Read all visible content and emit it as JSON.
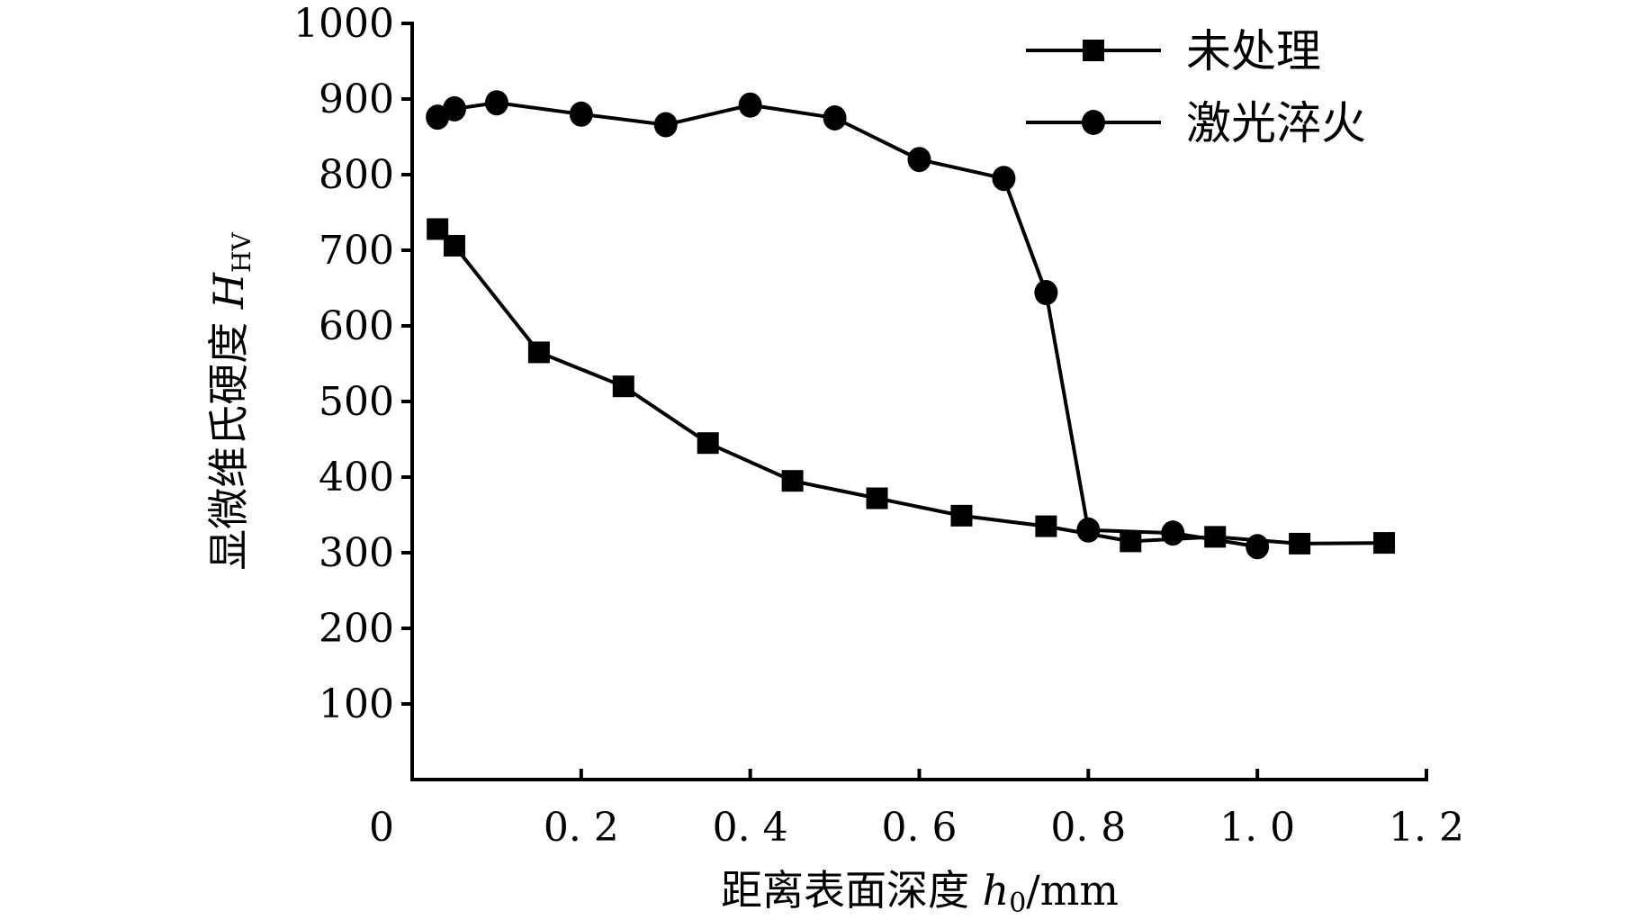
{
  "chart_data": {
    "type": "line",
    "title": "",
    "xlabel": "距离表面深度 h0/mm",
    "xlabel_parts": {
      "text": "距离表面深度 ",
      "var": "h",
      "sub": "0",
      "unit": "/mm"
    },
    "ylabel": "显微维氏硬度 HHV",
    "ylabel_parts": {
      "text": "显微维氏硬度 ",
      "var": "H",
      "sub": "HV"
    },
    "xlim": [
      0,
      1.2
    ],
    "ylim": [
      0,
      1000
    ],
    "xticks": [
      0,
      0.2,
      0.4,
      0.6,
      0.8,
      1.0,
      1.2
    ],
    "xtick_labels": [
      "0",
      "0. 2",
      "0. 4",
      "0. 6",
      "0. 8",
      "1. 0",
      "1. 2"
    ],
    "yticks": [
      100,
      200,
      300,
      400,
      500,
      600,
      700,
      800,
      900,
      1000
    ],
    "ytick_labels": [
      "100",
      "200",
      "300",
      "400",
      "500",
      "600",
      "700",
      "800",
      "900",
      "1000"
    ],
    "grid": false,
    "legend_position": "top-right",
    "series": [
      {
        "name": "未处理",
        "marker": "square",
        "x": [
          0.03,
          0.05,
          0.15,
          0.25,
          0.35,
          0.45,
          0.55,
          0.65,
          0.75,
          0.85,
          0.95,
          1.05,
          1.15
        ],
        "y": [
          728,
          706,
          565,
          520,
          445,
          395,
          372,
          349,
          335,
          315,
          321,
          312,
          313
        ]
      },
      {
        "name": "激光淬火",
        "marker": "circle",
        "x": [
          0.03,
          0.05,
          0.1,
          0.2,
          0.3,
          0.4,
          0.5,
          0.6,
          0.7,
          0.75,
          0.8,
          0.9,
          1.0
        ],
        "y": [
          876,
          887,
          895,
          880,
          866,
          892,
          875,
          820,
          795,
          644,
          330,
          326,
          308
        ]
      }
    ],
    "colors": {
      "line": "#000000"
    }
  }
}
